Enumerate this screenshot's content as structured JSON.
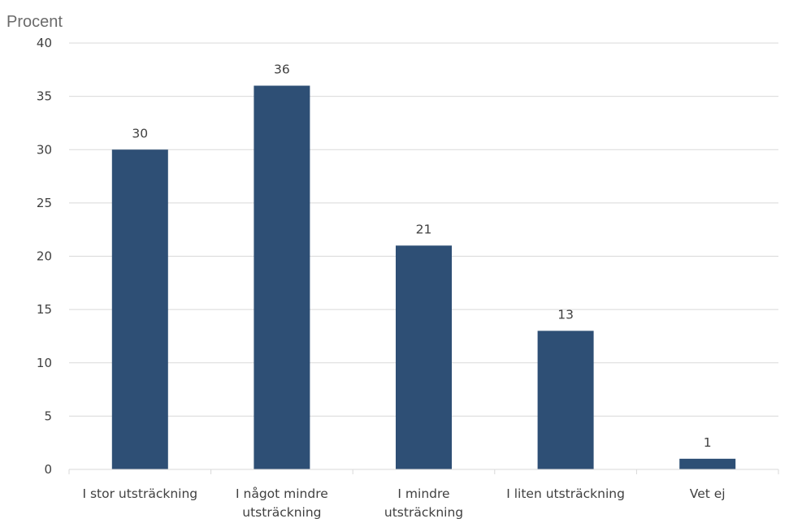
{
  "chart_data": {
    "type": "bar",
    "ylabel": "Procent",
    "xlabel": "",
    "ylim": [
      0,
      40
    ],
    "yticks": [
      0,
      5,
      10,
      15,
      20,
      25,
      30,
      35,
      40
    ],
    "grid": true,
    "legend": "none",
    "bar_color": "#2e4f75",
    "categories": [
      [
        "I stor utsträckning"
      ],
      [
        "I något mindre",
        "utsträckning"
      ],
      [
        "I mindre",
        "utsträckning"
      ],
      [
        "I liten utsträckning"
      ],
      [
        "Vet ej"
      ]
    ],
    "values": [
      30,
      36,
      21,
      13,
      1
    ],
    "data_labels": [
      "30",
      "36",
      "21",
      "13",
      "1"
    ]
  }
}
